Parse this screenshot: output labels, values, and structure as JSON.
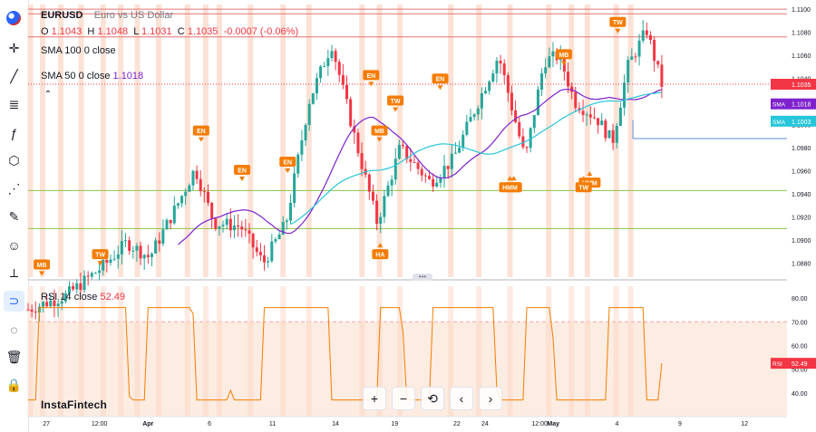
{
  "toolbar": [
    {
      "name": "crosshair-icon",
      "glyph": "✛"
    },
    {
      "name": "trend-line-icon",
      "glyph": "╱"
    },
    {
      "name": "fib-icon",
      "glyph": "≣"
    },
    {
      "name": "pitchfork-icon",
      "glyph": "ƒ"
    },
    {
      "name": "shape-icon",
      "glyph": "⬡"
    },
    {
      "name": "pattern-icon",
      "glyph": "⋰"
    },
    {
      "name": "brush-icon",
      "glyph": "✎"
    },
    {
      "name": "emoji-icon",
      "glyph": "☺"
    },
    {
      "name": "measure-icon",
      "glyph": "⟂"
    },
    {
      "name": "magnet-icon",
      "glyph": "⊃"
    },
    {
      "name": "hide-drawings-icon",
      "glyph": "◌"
    },
    {
      "name": "trash-icon",
      "glyph": "🗑"
    },
    {
      "name": "lock-icon",
      "glyph": "🔒"
    }
  ],
  "legend": {
    "symbol": "EURUSD",
    "description": "Euro vs US Dollar",
    "o_label": "O",
    "o": "1.1043",
    "h_label": "H",
    "h": "1.1048",
    "l_label": "L",
    "l": "1.1031",
    "c_label": "C",
    "c": "1.1035",
    "change": "-0.0007 (-0.06%)",
    "sma100": {
      "name": "SMA",
      "params": "100 0 close"
    },
    "sma50": {
      "name": "SMA",
      "params": "50 0 close",
      "value": "1.1018"
    },
    "rsi": {
      "name": "RSI",
      "params": "14 close",
      "value": "52.49"
    }
  },
  "brand": "InstaFintech",
  "nav": [
    "+",
    "−",
    "⟲",
    "‹",
    "›"
  ],
  "colors": {
    "up": "#26a69a",
    "down": "#f23645",
    "sma50": "#7e22ce",
    "sma100": "#26c6da",
    "rsi": "#f57c00",
    "marker": "#f57c00"
  },
  "chart_data": {
    "type": "candlestick",
    "price_axis": {
      "ticks": [
        "1.1100",
        "1.1080",
        "1.1060",
        "1.1040",
        "1.1020",
        "1.1000",
        "1.0980",
        "1.0960",
        "1.0940",
        "1.0920",
        "1.0900",
        "1.0880"
      ],
      "range": [
        1.0868,
        1.1104
      ]
    },
    "rsi_axis": {
      "ticks": [
        "80.00",
        "70.00",
        "60.00",
        "50.00",
        "40.00"
      ],
      "range": [
        30,
        85
      ]
    },
    "time_axis": {
      "labels": [
        "27",
        "12:00",
        "Apr",
        "6",
        "11",
        "14",
        "19",
        "22",
        "24",
        "12:00",
        "May",
        "4",
        "9",
        "12"
      ]
    },
    "price_label": {
      "name": "last",
      "value": "1.1035"
    },
    "sma50_label": {
      "name": "SMA",
      "value": "1.1018"
    },
    "sma100_label": {
      "name": "SMA",
      "value": "1.1003"
    },
    "rsi_label": {
      "name": "RSI",
      "value": "52.49"
    },
    "horizontal_lines": [
      1.11,
      1.1096,
      1.1076,
      1.0943,
      1.091
    ],
    "hline_price": 1.0988,
    "markers": [
      {
        "label": "MB",
        "dir": "down",
        "t": 0.018,
        "price": 1.0866
      },
      {
        "label": "TW",
        "dir": "down",
        "t": 0.095,
        "price": 1.0875
      },
      {
        "label": "EN",
        "dir": "down",
        "t": 0.228,
        "price": 1.0982
      },
      {
        "label": "EN",
        "dir": "down",
        "t": 0.282,
        "price": 1.0948
      },
      {
        "label": "EN",
        "dir": "down",
        "t": 0.342,
        "price": 1.0955
      },
      {
        "label": "EN",
        "dir": "down",
        "t": 0.452,
        "price": 1.103
      },
      {
        "label": "TW",
        "dir": "down",
        "t": 0.484,
        "price": 1.1008
      },
      {
        "label": "MB",
        "dir": "down",
        "t": 0.463,
        "price": 1.0982
      },
      {
        "label": "HA",
        "dir": "up",
        "t": 0.464,
        "price": 1.09
      },
      {
        "label": "EN",
        "dir": "down",
        "t": 0.543,
        "price": 1.1027
      },
      {
        "label": "MB",
        "dir": "up",
        "t": 0.64,
        "price": 1.0958
      },
      {
        "label": "HMM",
        "dir": "up",
        "t": 0.635,
        "price": 1.0958
      },
      {
        "label": "MB",
        "dir": "down",
        "t": 0.706,
        "price": 1.1048
      },
      {
        "label": "HMM",
        "dir": "up",
        "t": 0.74,
        "price": 1.0962
      },
      {
        "label": "TW",
        "dir": "up",
        "t": 0.732,
        "price": 1.0958
      },
      {
        "label": "TW",
        "dir": "down",
        "t": 0.777,
        "price": 1.1076
      },
      {
        "label": "TW",
        "dir": "down",
        "t": 0.793,
        "price": 1.1106
      }
    ],
    "vertical_highlights": [
      0.003,
      0.019,
      0.043,
      0.07,
      0.099,
      0.122,
      0.144,
      0.172,
      0.21,
      0.234,
      0.252,
      0.293,
      0.336,
      0.37,
      0.44,
      0.463,
      0.49,
      0.557,
      0.594,
      0.635,
      0.686,
      0.716,
      0.737,
      0.775,
      0.794
    ]
  }
}
